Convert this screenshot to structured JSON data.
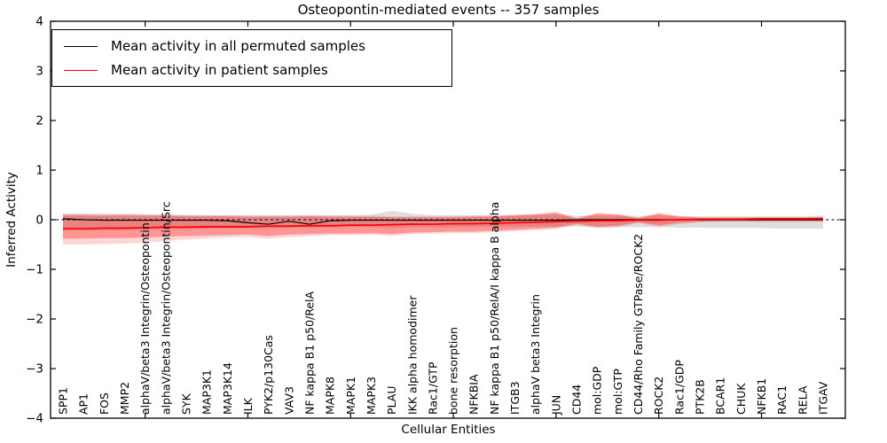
{
  "chart_data": {
    "type": "line",
    "title": "Osteopontin-mediated events -- 357 samples",
    "xlabel": "Cellular Entities",
    "ylabel": "Inferred Activity",
    "ylim": [
      -4,
      4
    ],
    "yticks": [
      -4,
      -3,
      -2,
      -1,
      0,
      1,
      2,
      3,
      4
    ],
    "xtick_step": 5,
    "grid": false,
    "legend_position": "upper left",
    "categories": [
      "SPP1",
      "AP1",
      "FOS",
      "MMP2",
      "alphaV/beta3 Integrin/Osteopontin",
      "alphaV/beta3 Integrin/Osteopontin/Src",
      "SYK",
      "MAP3K1",
      "MAP3K14",
      "ILK",
      "PYK2/p130Cas",
      "VAV3",
      "NF kappa B1 p50/RelA",
      "MAPK8",
      "MAPK1",
      "MAPK3",
      "PLAU",
      "IKK alpha homodimer",
      "Rac1/GTP",
      "bone resorption",
      "NFKBIA",
      "NF kappa B1 p50/RelA/I kappa B alpha",
      "ITGB3",
      "alphaV beta3 Integrin",
      "JUN",
      "CD44",
      "mol:GDP",
      "mol:GTP",
      "CD44/Rho Family GTPase/ROCK2",
      "ROCK2",
      "Rac1/GDP",
      "PTK2B",
      "BCAR1",
      "CHUK",
      "NFKB1",
      "RAC1",
      "RELA",
      "ITGAV"
    ],
    "series": [
      {
        "name": "Mean activity in all permuted samples",
        "color": "#000000",
        "width": 1.2,
        "values": [
          0.02,
          0.0,
          -0.01,
          -0.01,
          -0.01,
          -0.01,
          -0.01,
          -0.01,
          -0.02,
          -0.06,
          -0.09,
          -0.03,
          -0.09,
          -0.02,
          -0.01,
          -0.01,
          -0.01,
          -0.01,
          -0.01,
          -0.01,
          -0.01,
          -0.01,
          -0.01,
          -0.01,
          -0.01,
          0.0,
          0.0,
          0.0,
          0.0,
          0.0,
          0.0,
          0.0,
          0.0,
          0.0,
          0.0,
          0.0,
          0.0,
          0.0
        ]
      },
      {
        "name": "Mean activity in patient samples",
        "color": "#ff0000",
        "width": 1.7,
        "values": [
          -0.18,
          -0.18,
          -0.17,
          -0.17,
          -0.16,
          -0.15,
          -0.15,
          -0.14,
          -0.14,
          -0.14,
          -0.13,
          -0.13,
          -0.12,
          -0.12,
          -0.11,
          -0.11,
          -0.1,
          -0.09,
          -0.09,
          -0.08,
          -0.08,
          -0.07,
          -0.06,
          -0.05,
          -0.04,
          -0.03,
          -0.02,
          -0.02,
          -0.01,
          -0.01,
          0.0,
          0.01,
          0.01,
          0.01,
          0.02,
          0.02,
          0.02,
          0.02
        ]
      }
    ],
    "bands": [
      {
        "name": "permuted-range",
        "color": "#999999",
        "opacity": 0.32,
        "upper": [
          0.13,
          0.13,
          0.12,
          0.12,
          0.11,
          0.1,
          0.1,
          0.09,
          0.09,
          0.09,
          0.09,
          0.09,
          0.09,
          0.09,
          0.09,
          0.1,
          0.18,
          0.12,
          0.09,
          0.09,
          0.09,
          0.09,
          0.1,
          0.1,
          0.1,
          0.08,
          0.08,
          0.08,
          0.08,
          0.08,
          0.07,
          0.07,
          0.07,
          0.07,
          0.07,
          0.07,
          0.07,
          0.08
        ],
        "lower": [
          -0.22,
          -0.22,
          -0.21,
          -0.21,
          -0.2,
          -0.19,
          -0.18,
          -0.18,
          -0.17,
          -0.17,
          -0.17,
          -0.16,
          -0.16,
          -0.16,
          -0.15,
          -0.15,
          -0.17,
          -0.15,
          -0.15,
          -0.15,
          -0.14,
          -0.14,
          -0.14,
          -0.14,
          -0.14,
          -0.14,
          -0.15,
          -0.15,
          -0.15,
          -0.15,
          -0.16,
          -0.16,
          -0.17,
          -0.17,
          -0.17,
          -0.18,
          -0.18,
          -0.18
        ]
      },
      {
        "name": "patient-range-outer",
        "color": "#ff0000",
        "opacity": 0.16,
        "upper": [
          0.11,
          0.11,
          0.1,
          0.11,
          0.1,
          0.1,
          0.09,
          0.09,
          0.09,
          0.08,
          0.08,
          0.08,
          0.09,
          0.08,
          0.08,
          0.08,
          0.07,
          0.07,
          0.07,
          0.07,
          0.08,
          0.08,
          0.1,
          0.12,
          0.16,
          0.04,
          0.14,
          0.12,
          0.04,
          0.14,
          0.08,
          0.05,
          0.05,
          0.05,
          0.05,
          0.05,
          0.05,
          0.06
        ],
        "lower": [
          -0.5,
          -0.5,
          -0.49,
          -0.48,
          -0.46,
          -0.43,
          -0.4,
          -0.38,
          -0.36,
          -0.35,
          -0.38,
          -0.35,
          -0.33,
          -0.31,
          -0.31,
          -0.3,
          -0.33,
          -0.29,
          -0.28,
          -0.27,
          -0.27,
          -0.25,
          -0.23,
          -0.21,
          -0.19,
          -0.1,
          -0.17,
          -0.15,
          -0.07,
          -0.14,
          -0.09,
          -0.05,
          -0.04,
          -0.04,
          -0.04,
          -0.04,
          -0.04,
          -0.04
        ]
      },
      {
        "name": "patient-range-inner",
        "color": "#ff0000",
        "opacity": 0.3,
        "upper": [
          0.09,
          0.09,
          0.08,
          0.09,
          0.08,
          0.08,
          0.07,
          0.07,
          0.07,
          0.06,
          0.06,
          0.06,
          0.07,
          0.06,
          0.06,
          0.06,
          0.05,
          0.05,
          0.05,
          0.05,
          0.06,
          0.06,
          0.08,
          0.1,
          0.14,
          0.02,
          0.12,
          0.1,
          0.03,
          0.12,
          0.06,
          0.04,
          0.04,
          0.04,
          0.04,
          0.04,
          0.04,
          0.05
        ],
        "lower": [
          -0.38,
          -0.38,
          -0.37,
          -0.37,
          -0.36,
          -0.34,
          -0.33,
          -0.32,
          -0.31,
          -0.3,
          -0.33,
          -0.3,
          -0.29,
          -0.28,
          -0.28,
          -0.27,
          -0.29,
          -0.26,
          -0.25,
          -0.24,
          -0.24,
          -0.22,
          -0.2,
          -0.18,
          -0.16,
          -0.08,
          -0.14,
          -0.12,
          -0.05,
          -0.11,
          -0.06,
          -0.04,
          -0.03,
          -0.03,
          -0.03,
          -0.03,
          -0.03,
          -0.03
        ]
      }
    ],
    "zero_line": {
      "value": 0,
      "style": "dashed",
      "color": "#000000"
    }
  },
  "legend": {
    "items": [
      {
        "label": "Mean activity in all permuted samples",
        "color": "#000000"
      },
      {
        "label": "Mean activity in patient samples",
        "color": "#ff0000"
      }
    ]
  }
}
